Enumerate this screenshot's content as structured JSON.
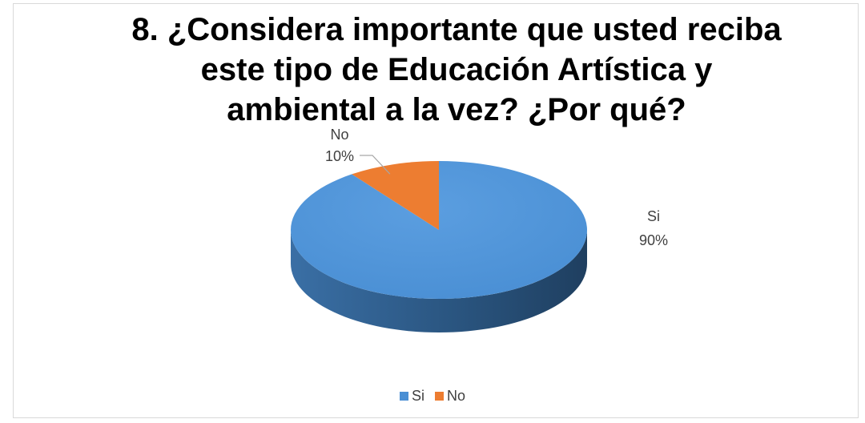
{
  "chart_data": {
    "type": "pie",
    "title": "8. ¿Considera importante que usted reciba este tipo de Educación Artística y ambiental a la vez? ¿Por qué?",
    "slices": [
      {
        "name": "Si",
        "value": 90,
        "label": "90%",
        "color": "#4a8fd4"
      },
      {
        "name": "No",
        "value": 10,
        "label": "10%",
        "color": "#ed7d31"
      }
    ],
    "legend_position": "bottom",
    "three_d": true
  }
}
